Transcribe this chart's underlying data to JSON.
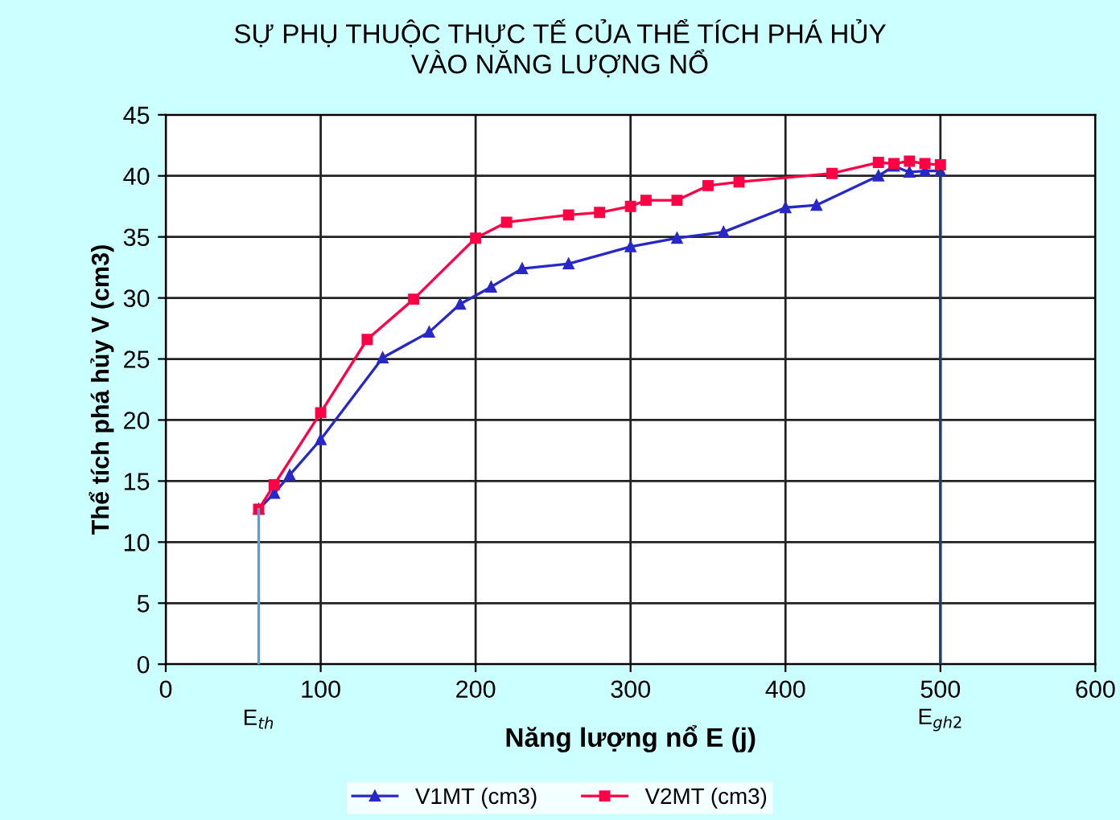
{
  "chart_data": {
    "type": "line",
    "title": "SỰ PHỤ THUỘC THỰC TẾ CỦA THỂ TÍCH PHÁ HỦY\nVÀO NĂNG LƯỢNG NỔ",
    "xlabel": "Năng lượng nổ E (j)",
    "ylabel": "Thể tích phá hủy V (cm3)",
    "xlim": [
      0,
      600
    ],
    "xticks": [
      0,
      100,
      200,
      300,
      400,
      500,
      600
    ],
    "ylim": [
      0,
      45
    ],
    "yticks": [
      0,
      5,
      10,
      15,
      20,
      25,
      30,
      35,
      40,
      45
    ],
    "grid": true,
    "legend": "bottom",
    "series": [
      {
        "name": "V1MT (cm3)",
        "color": "#2828c8",
        "marker": "triangle",
        "x": [
          60,
          70,
          80,
          100,
          140,
          170,
          190,
          210,
          230,
          260,
          300,
          330,
          360,
          400,
          420,
          460,
          470,
          480,
          490,
          500
        ],
        "values": [
          12.7,
          14,
          15.5,
          18.4,
          25.1,
          27.2,
          29.5,
          30.9,
          32.4,
          32.8,
          34.2,
          34.9,
          35.4,
          37.4,
          37.6,
          40.0,
          40.8,
          40.3,
          40.4,
          40.4
        ]
      },
      {
        "name": "V2MT (cm3)",
        "color": "#ff0044",
        "marker": "square",
        "x": [
          60,
          70,
          100,
          130,
          160,
          200,
          220,
          260,
          280,
          300,
          310,
          330,
          350,
          370,
          430,
          460,
          470,
          480,
          490,
          500
        ],
        "values": [
          12.7,
          14.7,
          20.6,
          26.6,
          29.9,
          34.9,
          36.2,
          36.8,
          37.0,
          37.5,
          38.0,
          38.0,
          39.2,
          39.5,
          40.2,
          41.1,
          41.0,
          41.2,
          41.0,
          40.9
        ]
      },
      {
        "color": "#6699cc",
        "marker": "none",
        "x": [
          60,
          60
        ],
        "values": [
          0,
          12.7
        ]
      },
      {
        "color": "#1f3f6f",
        "marker": "none",
        "x": [
          500,
          500
        ],
        "values": [
          0,
          40.4
        ]
      }
    ],
    "annotations": [
      {
        "text": "E$_{th}$",
        "x": 60,
        "y": 0
      },
      {
        "text": "E$_{gh2}$",
        "x": 500,
        "y": 0
      }
    ]
  }
}
